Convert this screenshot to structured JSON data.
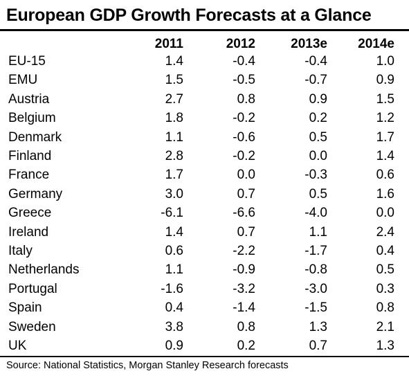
{
  "chart_data": {
    "type": "table",
    "title": "European GDP Growth Forecasts at a Glance",
    "columns": [
      "2011",
      "2012",
      "2013e",
      "2014e"
    ],
    "rows": [
      {
        "country": "EU-15",
        "values": [
          "1.4",
          "-0.4",
          "-0.4",
          "1.0"
        ]
      },
      {
        "country": "EMU",
        "values": [
          "1.5",
          "-0.5",
          "-0.7",
          "0.9"
        ]
      },
      {
        "country": "Austria",
        "values": [
          "2.7",
          "0.8",
          "0.9",
          "1.5"
        ]
      },
      {
        "country": "Belgium",
        "values": [
          "1.8",
          "-0.2",
          "0.2",
          "1.2"
        ]
      },
      {
        "country": "Denmark",
        "values": [
          "1.1",
          "-0.6",
          "0.5",
          "1.7"
        ]
      },
      {
        "country": "Finland",
        "values": [
          "2.8",
          "-0.2",
          "0.0",
          "1.4"
        ]
      },
      {
        "country": "France",
        "values": [
          "1.7",
          "0.0",
          "-0.3",
          "0.6"
        ]
      },
      {
        "country": "Germany",
        "values": [
          "3.0",
          "0.7",
          "0.5",
          "1.6"
        ]
      },
      {
        "country": "Greece",
        "values": [
          "-6.1",
          "-6.6",
          "-4.0",
          "0.0"
        ]
      },
      {
        "country": "Ireland",
        "values": [
          "1.4",
          "0.7",
          "1.1",
          "2.4"
        ]
      },
      {
        "country": "Italy",
        "values": [
          "0.6",
          "-2.2",
          "-1.7",
          "0.4"
        ]
      },
      {
        "country": "Netherlands",
        "values": [
          "1.1",
          "-0.9",
          "-0.8",
          "0.5"
        ]
      },
      {
        "country": "Portugal",
        "values": [
          "-1.6",
          "-3.2",
          "-3.0",
          "0.3"
        ]
      },
      {
        "country": "Spain",
        "values": [
          "0.4",
          "-1.4",
          "-1.5",
          "0.8"
        ]
      },
      {
        "country": "Sweden",
        "values": [
          "3.8",
          "0.8",
          "1.3",
          "2.1"
        ]
      },
      {
        "country": "UK",
        "values": [
          "0.9",
          "0.2",
          "0.7",
          "1.3"
        ]
      }
    ],
    "source": "Source: National Statistics, Morgan Stanley Research forecasts"
  }
}
